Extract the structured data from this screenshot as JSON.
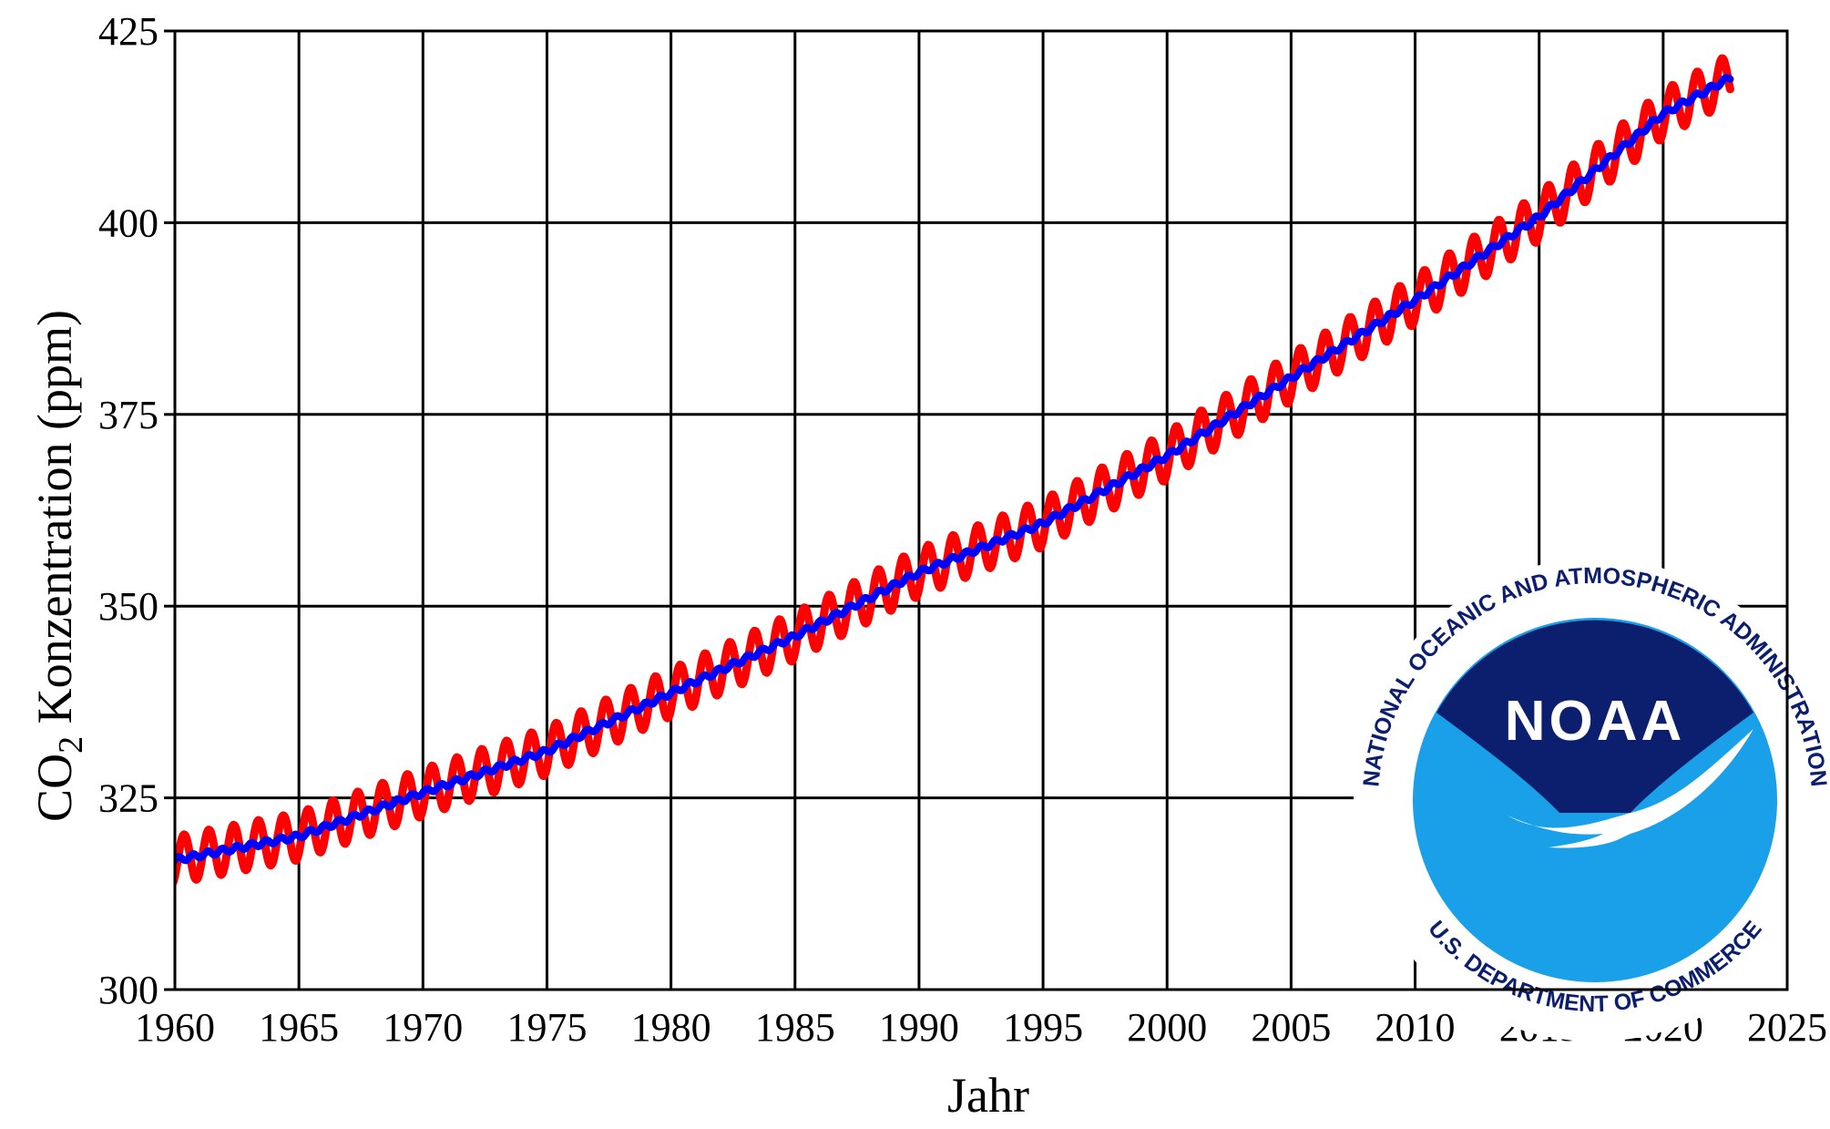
{
  "chart_data": {
    "type": "line",
    "title": "",
    "xlabel": "Jahr",
    "ylabel_prefix": "CO",
    "ylabel_subscript": "2",
    "ylabel_suffix": " Konzentration (ppm)",
    "xlim": [
      1960,
      2025
    ],
    "ylim": [
      300,
      425
    ],
    "x_ticks": [
      1960,
      1965,
      1970,
      1975,
      1980,
      1985,
      1990,
      1995,
      2000,
      2005,
      2010,
      2015,
      2020,
      2025
    ],
    "y_ticks": [
      300,
      325,
      350,
      375,
      400,
      425
    ],
    "grid": true,
    "legend": "none",
    "series": [
      {
        "kind": "monthly",
        "color": "#ff0000",
        "x_start": 1958.2,
        "x_end": 2022.7,
        "seasonal_amplitude_ppm": 3.1,
        "x": [
          1958.2,
          1960,
          1965,
          1970,
          1975,
          1980,
          1985,
          1990,
          1995,
          2000,
          2005,
          2010,
          2015,
          2020,
          2022.7
        ],
        "y": [
          315.7,
          316.9,
          320.0,
          325.7,
          331.1,
          338.7,
          346.1,
          354.4,
          360.8,
          369.6,
          379.8,
          389.9,
          400.8,
          414.2,
          418.9
        ]
      },
      {
        "kind": "trend",
        "color": "#0000ff",
        "x": [
          1958.2,
          1960,
          1965,
          1970,
          1975,
          1980,
          1985,
          1990,
          1995,
          2000,
          2005,
          2010,
          2015,
          2020,
          2022.7
        ],
        "y": [
          315.7,
          316.9,
          320.0,
          325.7,
          331.1,
          338.7,
          346.1,
          354.4,
          360.8,
          369.6,
          379.8,
          389.9,
          400.8,
          414.2,
          418.9
        ]
      }
    ]
  },
  "logo": {
    "wordmark": "NOAA",
    "top_arc": "NATIONAL OCEANIC AND ATMOSPHERIC ADMINISTRATION",
    "bottom_arc": "U.S. DEPARTMENT OF COMMERCE",
    "colors": {
      "navy": "#0c1f6e",
      "ocean": "#1aa0e8",
      "white": "#ffffff"
    }
  }
}
